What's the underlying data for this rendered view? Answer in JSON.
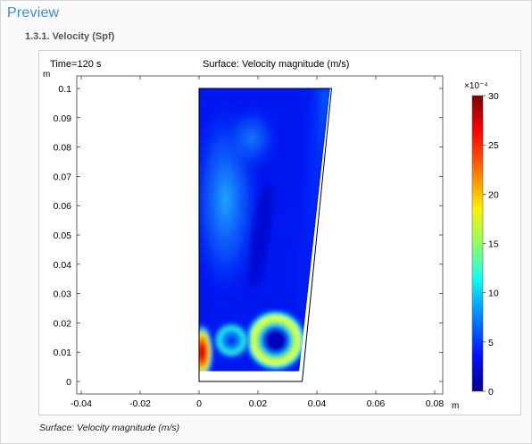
{
  "preview_title": "Preview",
  "section_title": "1.3.1. Velocity (Spf)",
  "caption": "Surface: Velocity magnitude (m/s)",
  "plot": {
    "time_label": "Time=120 s",
    "surface_label": "Surface: Velocity magnitude (m/s)",
    "x_unit": "m",
    "y_unit": "m",
    "colorbar_exponent": "×10⁻⁴"
  },
  "chart_data": {
    "type": "heatmap",
    "title": "Surface: Velocity magnitude (m/s)",
    "subtitle": "Time=120 s",
    "xlabel": "m",
    "ylabel": "m",
    "xlim": [
      -0.045,
      0.09
    ],
    "ylim": [
      -0.005,
      0.105
    ],
    "x_ticks": [
      "-0.04",
      "-0.02",
      "0",
      "0.02",
      "0.04",
      "0.06",
      "0.08"
    ],
    "x_tick_values": [
      -0.04,
      -0.02,
      0,
      0.02,
      0.04,
      0.06,
      0.08
    ],
    "y_ticks": [
      "0",
      "0.01",
      "0.02",
      "0.03",
      "0.04",
      "0.05",
      "0.06",
      "0.07",
      "0.08",
      "0.09",
      "0.1"
    ],
    "y_tick_values": [
      0,
      0.01,
      0.02,
      0.03,
      0.04,
      0.05,
      0.06,
      0.07,
      0.08,
      0.09,
      0.1
    ],
    "colorbar": {
      "exponent_label": "×10⁻⁴",
      "min": 0,
      "max": 30,
      "ticks": [
        "0",
        "5",
        "10",
        "15",
        "20",
        "25",
        "30"
      ],
      "tick_values": [
        0,
        5,
        10,
        15,
        20,
        25,
        30
      ],
      "colormap": "rainbow",
      "colors": [
        "#00008f",
        "#0010ff",
        "#00b0ff",
        "#10ffef",
        "#90ff60",
        "#ffef00",
        "#ff7000",
        "#ff0000",
        "#800000"
      ]
    },
    "domain_outline": [
      [
        0,
        0
      ],
      [
        0.035,
        0
      ],
      [
        0.045,
        0.1
      ],
      [
        0,
        0.1
      ]
    ],
    "fluid_region": [
      [
        0,
        0.0035
      ],
      [
        0.034,
        0.0035
      ],
      [
        0.0445,
        0.1
      ],
      [
        0,
        0.1
      ]
    ],
    "features": [
      {
        "name": "left-wall jet",
        "x": 0.001,
        "y": 0.01,
        "value": 29
      },
      {
        "name": "vortex ring",
        "x": 0.026,
        "y": 0.014,
        "value": 18
      },
      {
        "name": "small vortex",
        "x": 0.011,
        "y": 0.014,
        "value": 10
      },
      {
        "name": "upper plume",
        "x": 0.008,
        "y": 0.06,
        "value": 8
      }
    ]
  }
}
